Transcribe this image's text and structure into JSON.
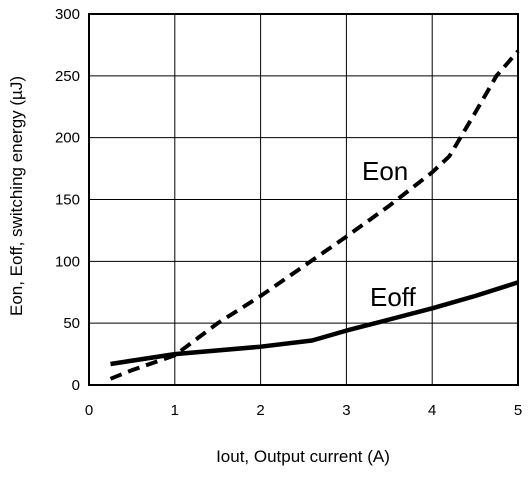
{
  "chart_data": {
    "type": "line",
    "xlabel": "Iout, Output current (A)",
    "ylabel": "Eon, Eoff, switching energy (µJ)",
    "xlim": [
      0,
      5
    ],
    "ylim": [
      0,
      300
    ],
    "x_ticks": [
      "0",
      "1",
      "2",
      "3",
      "4",
      "5"
    ],
    "y_ticks": [
      "0",
      "50",
      "100",
      "150",
      "200",
      "250",
      "300"
    ],
    "grid": true,
    "legend": "none",
    "series": [
      {
        "name": "Eon",
        "style": "dashed",
        "x": [
          0.25,
          0.5,
          1.0,
          1.5,
          2.0,
          2.5,
          3.0,
          3.5,
          4.0,
          4.2,
          4.5,
          4.75,
          5.0
        ],
        "y": [
          5,
          12,
          24,
          50,
          72,
          96,
          120,
          145,
          172,
          185,
          220,
          250,
          270
        ]
      },
      {
        "name": "Eoff",
        "style": "solid",
        "x": [
          0.25,
          1.0,
          2.0,
          2.6,
          3.0,
          3.5,
          4.0,
          4.5,
          5.0
        ],
        "y": [
          17,
          25,
          31,
          36,
          44,
          53,
          62,
          72,
          83
        ]
      }
    ]
  }
}
